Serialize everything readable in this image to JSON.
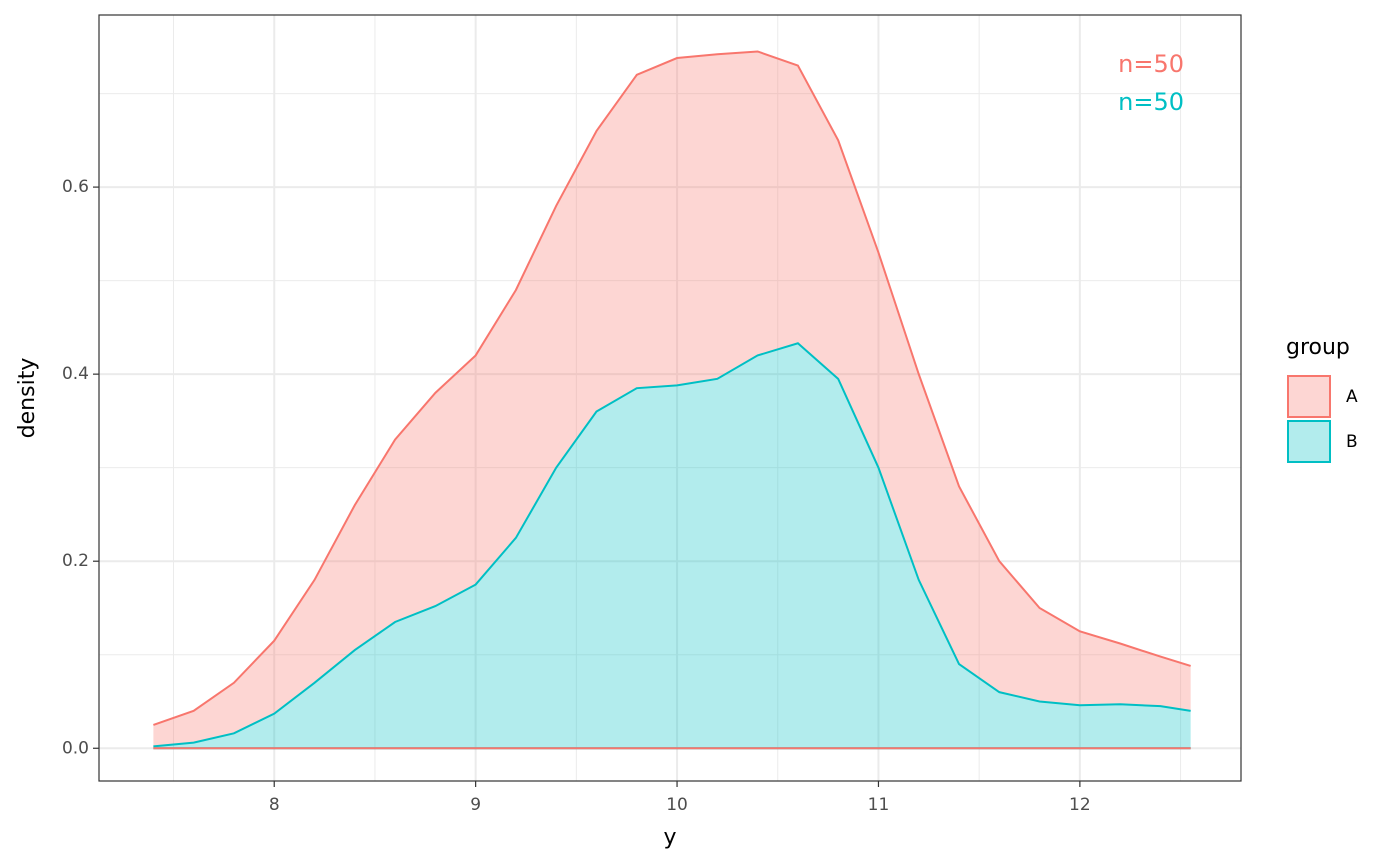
{
  "chart_data": {
    "type": "area",
    "stacked": true,
    "x_label": "y",
    "y_label": "density",
    "legend_title": "group",
    "legend_position": "right",
    "grid": true,
    "x": [
      7.4,
      7.6,
      7.8,
      8.0,
      8.2,
      8.4,
      8.6,
      8.8,
      9.0,
      9.2,
      9.4,
      9.6,
      9.8,
      10.0,
      10.2,
      10.4,
      10.6,
      10.8,
      11.0,
      11.2,
      11.4,
      11.6,
      11.8,
      12.0,
      12.2,
      12.4,
      12.55
    ],
    "series": [
      {
        "name": "B",
        "color": "#00BFC4",
        "values": [
          0.002,
          0.006,
          0.016,
          0.037,
          0.07,
          0.105,
          0.135,
          0.152,
          0.175,
          0.225,
          0.3,
          0.36,
          0.385,
          0.388,
          0.395,
          0.42,
          0.433,
          0.395,
          0.3,
          0.18,
          0.09,
          0.06,
          0.05,
          0.046,
          0.047,
          0.045,
          0.04
        ]
      },
      {
        "name": "A",
        "color": "#F8766D",
        "values": [
          0.023,
          0.034,
          0.054,
          0.078,
          0.11,
          0.155,
          0.195,
          0.228,
          0.245,
          0.265,
          0.28,
          0.3,
          0.335,
          0.35,
          0.347,
          0.325,
          0.297,
          0.255,
          0.23,
          0.22,
          0.19,
          0.14,
          0.1,
          0.079,
          0.065,
          0.053,
          0.048
        ]
      }
    ],
    "annotations": [
      {
        "text": "n=50",
        "color": "#F8766D"
      },
      {
        "text": "n=50",
        "color": "#00BFC4"
      }
    ],
    "xlim": [
      7.13,
      12.8
    ],
    "ylim": [
      -0.035,
      0.784
    ],
    "xticks": [
      8,
      9,
      10,
      11,
      12
    ],
    "yticks": [
      {
        "value": 0,
        "label": "0.0"
      },
      0.2,
      0.4,
      0.6
    ],
    "xminorticks": [
      7.5,
      8.5,
      9.5,
      10.5,
      11.5,
      12.5
    ],
    "yminorticks": [
      0.1,
      0.3,
      0.5,
      0.7
    ]
  }
}
